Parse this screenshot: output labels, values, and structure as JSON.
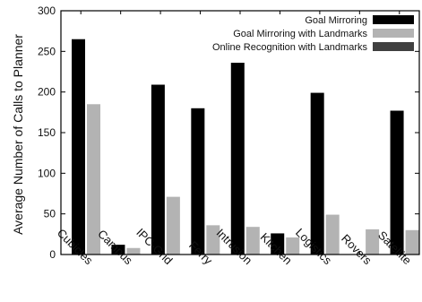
{
  "chart_data": {
    "type": "bar",
    "title": "",
    "xlabel": "",
    "ylabel": "Average Number of Calls to Planner",
    "ylim": [
      0,
      300
    ],
    "yticks": [
      0,
      50,
      100,
      150,
      200,
      250,
      300
    ],
    "grid": false,
    "legend_position": "top-right",
    "categories": [
      "Cubicles",
      "Campus",
      "IPC-Grid",
      "Ferry",
      "Intrusion",
      "Kitchen",
      "Logistics",
      "Rovers",
      "Satellite"
    ],
    "series": [
      {
        "name": "Goal Mirroring",
        "color": "#000000",
        "values": [
          265,
          12,
          209,
          180,
          236,
          26,
          199,
          0,
          177
        ]
      },
      {
        "name": "Goal Mirroring with Landmarks",
        "color": "#b3b3b3",
        "values": [
          185,
          8,
          71,
          36,
          34,
          21,
          49,
          31,
          30
        ]
      },
      {
        "name": "Online Recognition with Landmarks",
        "color": "#404040",
        "values": [
          0,
          0,
          0,
          0,
          0,
          0,
          0,
          0,
          0
        ]
      }
    ]
  }
}
